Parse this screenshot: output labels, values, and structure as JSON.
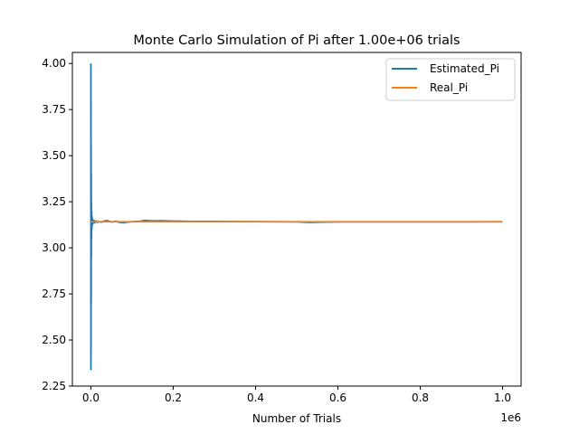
{
  "chart_data": {
    "type": "line",
    "title": "Monte Carlo Simulation of Pi after 1.00e+06 trials",
    "xlabel": "Number of Trials",
    "ylabel": "",
    "x_offset_label": "1e6",
    "x_scale": 1000000,
    "xlim": [
      -45000,
      1045000
    ],
    "ylim": [
      2.25,
      4.06
    ],
    "x_ticks": [
      0,
      200000,
      400000,
      600000,
      800000,
      1000000
    ],
    "x_tick_labels": [
      "0.0",
      "0.2",
      "0.4",
      "0.6",
      "0.8",
      "1.0"
    ],
    "y_ticks": [
      2.25,
      2.5,
      2.75,
      3.0,
      3.25,
      3.5,
      3.75,
      4.0
    ],
    "y_tick_labels": [
      "2.25",
      "2.50",
      "2.75",
      "3.00",
      "3.25",
      "3.50",
      "3.75",
      "4.00"
    ],
    "grid": false,
    "legend": "top-right",
    "colors": {
      "estimated": "#1f77b4",
      "real": "#ff7f0e"
    },
    "series": [
      {
        "name": "Estimated_Pi",
        "x": [
          1,
          60,
          180,
          320,
          450,
          600,
          800,
          1000,
          1200,
          1500,
          1800,
          2200,
          2600,
          3000,
          3500,
          4000,
          5000,
          6500,
          8000,
          10000,
          13000,
          16000,
          20000,
          25000,
          30000,
          40000,
          50000,
          60000,
          70000,
          80000,
          90000,
          100000,
          110000,
          120000,
          130000,
          150000,
          170000,
          200000,
          250000,
          300000,
          400000,
          500000,
          530000,
          600000,
          700000,
          800000,
          900000,
          1000000
        ],
        "values": [
          4.0,
          2.34,
          3.8,
          2.45,
          3.55,
          2.7,
          3.4,
          2.95,
          3.25,
          3.05,
          3.2,
          3.1,
          3.17,
          3.12,
          3.16,
          3.13,
          3.15,
          3.135,
          3.148,
          3.136,
          3.146,
          3.138,
          3.143,
          3.139,
          3.144,
          3.148,
          3.14,
          3.144,
          3.138,
          3.136,
          3.14,
          3.142,
          3.143,
          3.144,
          3.149,
          3.146,
          3.147,
          3.145,
          3.143,
          3.143,
          3.142,
          3.141,
          3.138,
          3.141,
          3.141,
          3.141,
          3.141,
          3.1416
        ]
      },
      {
        "name": "Real_Pi",
        "x": [
          1,
          1000000
        ],
        "values": [
          3.14159,
          3.14159
        ]
      }
    ]
  }
}
